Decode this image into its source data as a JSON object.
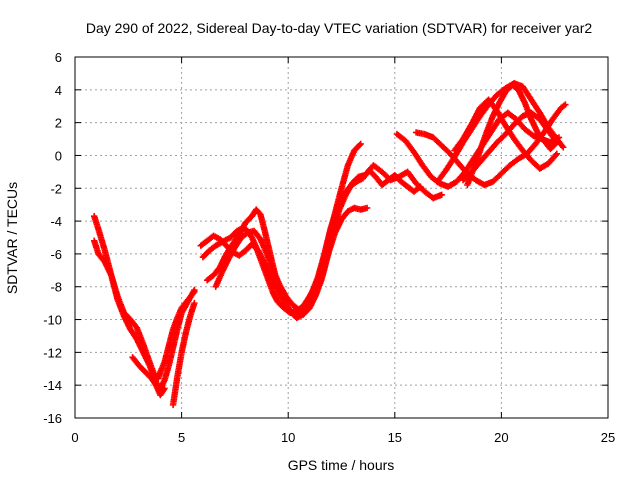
{
  "chart_data": {
    "type": "scatter",
    "title": "Day 290 of 2022, Sidereal Day-to-day VTEC variation (SDTVAR) for receiver yar2",
    "xlabel": "GPS time / hours",
    "ylabel": "SDTVAR / TECUs",
    "xlim": [
      0,
      25
    ],
    "ylim": [
      -16,
      6
    ],
    "x_ticks": [
      "0",
      "5",
      "10",
      "15",
      "20",
      "25"
    ],
    "y_ticks": [
      "-16",
      "-14",
      "-12",
      "-10",
      "-8",
      "-6",
      "-4",
      "-2",
      "0",
      "2",
      "4",
      "6"
    ],
    "grid": true,
    "legend": "none",
    "marker": "+",
    "color": "#ff0000",
    "series": [
      {
        "x": [
          0.9,
          1.1,
          1.4,
          1.7,
          2.0,
          2.3,
          2.6,
          2.9,
          3.2,
          3.5,
          3.7,
          3.9,
          4.0,
          4.2,
          4.4,
          4.6,
          4.8,
          5.0,
          5.3,
          5.6
        ],
        "y": [
          -5.2,
          -6.0,
          -6.5,
          -7.3,
          -8.6,
          -9.6,
          -10.0,
          -10.5,
          -11.5,
          -12.6,
          -13.3,
          -13.6,
          -13.2,
          -12.6,
          -11.6,
          -10.6,
          -9.9,
          -9.3,
          -8.8,
          -8.3
        ]
      },
      {
        "x": [
          0.9,
          1.1,
          1.4,
          1.7,
          2.0,
          2.3,
          2.6,
          2.9,
          3.2,
          3.5,
          3.7,
          3.9,
          4.0,
          4.2,
          4.4,
          4.6,
          4.8,
          5.0,
          5.3,
          5.6
        ],
        "y": [
          -3.7,
          -4.5,
          -5.8,
          -7.3,
          -8.8,
          -9.8,
          -10.6,
          -11.2,
          -12.0,
          -12.8,
          -13.5,
          -14.1,
          -14.2,
          -13.7,
          -12.8,
          -11.7,
          -10.6,
          -9.6,
          -8.9,
          -8.2
        ]
      },
      {
        "x": [
          2.7,
          3.0,
          3.3,
          3.6,
          3.8,
          4.0,
          4.2
        ],
        "y": [
          -12.3,
          -12.8,
          -13.2,
          -13.6,
          -14.0,
          -14.6,
          -14.2
        ]
      },
      {
        "x": [
          4.6,
          4.8,
          5.0,
          5.2,
          5.4,
          5.6
        ],
        "y": [
          -15.2,
          -13.5,
          -12.0,
          -10.8,
          -9.8,
          -9.0
        ]
      },
      {
        "x": [
          6.0,
          6.3,
          6.6,
          7.0,
          7.3,
          7.6,
          7.9,
          8.1,
          8.3,
          8.5,
          8.7,
          8.9,
          9.1,
          9.3,
          9.5,
          9.8,
          10.1,
          10.4,
          10.7,
          11.0,
          11.3,
          11.6,
          11.9,
          12.2,
          12.5,
          12.8,
          13.1,
          13.4
        ],
        "y": [
          -6.2,
          -5.8,
          -5.5,
          -5.2,
          -5.0,
          -4.6,
          -4.4,
          -4.6,
          -5.0,
          -5.6,
          -6.3,
          -7.0,
          -7.7,
          -8.4,
          -8.9,
          -9.3,
          -9.6,
          -9.5,
          -9.2,
          -8.6,
          -7.9,
          -6.6,
          -5.0,
          -3.5,
          -2.0,
          -0.6,
          0.3,
          0.7
        ]
      },
      {
        "x": [
          6.2,
          6.5,
          6.8,
          7.1,
          7.4,
          7.7,
          8.0,
          8.3,
          8.5,
          8.7,
          8.9,
          9.1,
          9.3,
          9.5,
          9.7,
          10.0,
          10.3,
          10.6,
          10.9,
          11.2,
          11.5,
          11.8,
          12.1,
          12.4,
          12.7,
          13.0,
          13.3,
          13.6
        ],
        "y": [
          -7.6,
          -7.3,
          -6.8,
          -6.0,
          -5.4,
          -4.8,
          -4.1,
          -3.7,
          -3.3,
          -3.6,
          -4.6,
          -5.7,
          -6.8,
          -7.9,
          -8.6,
          -9.3,
          -9.7,
          -9.6,
          -9.2,
          -8.7,
          -7.8,
          -6.3,
          -4.7,
          -3.3,
          -2.4,
          -1.7,
          -1.3,
          -1.2
        ]
      },
      {
        "x": [
          5.9,
          6.2,
          6.5,
          6.8,
          7.1,
          7.4,
          7.7,
          8.0,
          8.3,
          8.6,
          8.9,
          9.2,
          9.5,
          9.8,
          10.1,
          10.4,
          10.7,
          11.0,
          11.3,
          11.6,
          11.9,
          12.2,
          12.5,
          12.8,
          13.1,
          13.4,
          13.7
        ],
        "y": [
          -5.5,
          -5.2,
          -4.9,
          -5.1,
          -5.5,
          -5.9,
          -6.1,
          -5.8,
          -5.4,
          -5.8,
          -6.6,
          -7.4,
          -8.2,
          -8.9,
          -9.5,
          -9.9,
          -9.7,
          -9.3,
          -8.5,
          -7.4,
          -5.9,
          -4.7,
          -3.9,
          -3.4,
          -3.2,
          -3.3,
          -3.2
        ]
      },
      {
        "x": [
          6.6,
          6.9,
          7.2,
          7.5,
          7.8,
          8.1,
          8.4,
          8.7,
          9.0,
          9.3,
          9.6,
          9.9,
          10.2,
          10.5,
          10.8,
          11.1,
          11.4,
          11.7,
          12.0,
          12.3,
          12.6,
          12.9,
          13.2,
          13.5,
          13.8,
          14.1,
          14.4,
          14.7,
          15.0,
          15.3,
          15.6,
          15.9,
          16.2
        ],
        "y": [
          -8.0,
          -7.1,
          -6.3,
          -5.6,
          -5.0,
          -4.7,
          -4.6,
          -5.1,
          -6.0,
          -7.0,
          -7.9,
          -8.6,
          -9.1,
          -9.4,
          -9.1,
          -8.4,
          -7.4,
          -6.0,
          -4.4,
          -3.2,
          -2.4,
          -1.9,
          -1.6,
          -1.4,
          -0.9,
          -1.3,
          -1.8,
          -1.5,
          -1.2,
          -1.6,
          -1.9,
          -2.2,
          -1.9
        ]
      },
      {
        "x": [
          13.2,
          13.6,
          14.0,
          14.4,
          14.8,
          15.2,
          15.6,
          16.0,
          16.4,
          16.8,
          17.2
        ],
        "y": [
          -1.6,
          -1.2,
          -0.6,
          -1.0,
          -1.5,
          -1.3,
          -1.0,
          -1.7,
          -2.2,
          -2.6,
          -2.4
        ]
      },
      {
        "x": [
          15.1,
          15.5,
          15.9,
          16.3,
          16.7,
          17.1,
          17.5,
          17.9,
          18.3,
          18.7,
          19.1,
          19.5,
          19.9,
          20.3,
          20.7,
          21.1,
          21.5,
          21.9,
          22.3,
          22.7
        ],
        "y": [
          1.3,
          0.9,
          0.2,
          -0.6,
          -1.3,
          -1.7,
          -1.9,
          -1.6,
          -1.0,
          -0.2,
          0.6,
          1.4,
          2.2,
          2.6,
          2.2,
          1.6,
          1.2,
          1.0,
          0.8,
          1.1
        ]
      },
      {
        "x": [
          16.0,
          16.4,
          16.8,
          17.2,
          17.6,
          18.0,
          18.4,
          18.8,
          19.2,
          19.6,
          20.0,
          20.4,
          20.8,
          21.2,
          21.6,
          22.0,
          22.4,
          22.8,
          23.0
        ],
        "y": [
          1.4,
          1.3,
          1.1,
          0.6,
          0.1,
          -0.5,
          -1.1,
          -1.5,
          -1.8,
          -1.6,
          -1.1,
          -0.6,
          -0.2,
          0.1,
          0.7,
          1.4,
          2.2,
          2.9,
          3.1
        ]
      },
      {
        "x": [
          17.0,
          17.4,
          17.8,
          18.2,
          18.6,
          19.0,
          19.4,
          19.8,
          20.2,
          20.6,
          21.0,
          21.4,
          21.8,
          22.2,
          22.6,
          22.9
        ],
        "y": [
          -1.6,
          -0.9,
          -0.1,
          0.8,
          1.6,
          2.4,
          3.1,
          3.7,
          4.1,
          4.4,
          4.2,
          3.4,
          2.6,
          1.7,
          1.0,
          0.5
        ]
      },
      {
        "x": [
          17.8,
          18.2,
          18.6,
          19.0,
          19.4,
          19.8,
          20.2,
          20.6,
          21.0,
          21.4,
          21.8,
          22.2,
          22.6
        ],
        "y": [
          0.3,
          1.0,
          1.9,
          2.9,
          3.4,
          2.7,
          1.8,
          1.0,
          0.3,
          -0.3,
          -0.8,
          -0.5,
          0.1
        ]
      },
      {
        "x": [
          18.2,
          18.6,
          19.0,
          19.4,
          19.8,
          20.2,
          20.6,
          21.0,
          21.4,
          21.8,
          22.2,
          22.6
        ],
        "y": [
          -1.5,
          -1.0,
          -0.4,
          0.2,
          0.8,
          1.3,
          1.9,
          2.4,
          2.6,
          2.2,
          1.5,
          0.8
        ]
      },
      {
        "x": [
          18.4,
          18.7,
          19.0,
          19.3,
          19.6,
          19.9,
          20.2,
          20.5,
          20.8,
          21.1,
          21.4,
          21.7,
          22.0,
          22.3,
          22.6
        ],
        "y": [
          -1.8,
          -0.8,
          0.3,
          1.4,
          2.4,
          3.2,
          3.9,
          4.3,
          4.0,
          3.2,
          2.2,
          1.4,
          0.9,
          0.4,
          0.8
        ]
      }
    ]
  }
}
